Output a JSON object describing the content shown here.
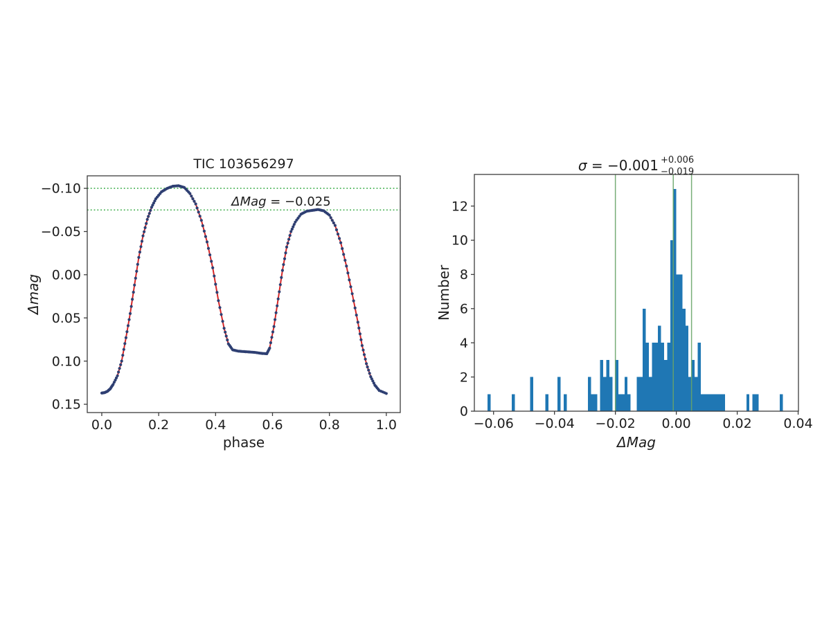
{
  "page": {
    "background": "#ffffff"
  },
  "chart_data": [
    {
      "type": "line",
      "title": "TIC 103656297",
      "xlabel": "phase",
      "ylabel": "Δmag",
      "annotation": {
        "label_italic": "ΔMag",
        "label_rest": " = −0.025",
        "x": 0.615,
        "y": -0.085
      },
      "x_ticks": [
        "0.0",
        "0.2",
        "0.4",
        "0.6",
        "0.8",
        "1.0"
      ],
      "x_tick_values": [
        0,
        0.2,
        0.4,
        0.6,
        0.8,
        1.0
      ],
      "y_ticks": [
        "−0.10",
        "−0.05",
        "0.00",
        "0.05",
        "0.10",
        "0.15"
      ],
      "y_tick_values": [
        -0.1,
        -0.05,
        0.0,
        0.05,
        0.1,
        0.15
      ],
      "xlim": [
        -0.051,
        1.049
      ],
      "ylim": [
        0.1596,
        -0.1145
      ],
      "y_axis_inverted": true,
      "grid": false,
      "hlines": [
        -0.1,
        -0.075
      ],
      "hline_color": "#3fae4c",
      "scatter_color": "#2e3f72",
      "line_color": "#d62728",
      "points": [
        [
          0.0,
          0.137
        ],
        [
          0.01,
          0.1365
        ],
        [
          0.02,
          0.135
        ],
        [
          0.03,
          0.132
        ],
        [
          0.04,
          0.127
        ],
        [
          0.055,
          0.117
        ],
        [
          0.07,
          0.1
        ],
        [
          0.085,
          0.073
        ],
        [
          0.1,
          0.045
        ],
        [
          0.115,
          0.012
        ],
        [
          0.13,
          -0.02
        ],
        [
          0.145,
          -0.045
        ],
        [
          0.16,
          -0.064
        ],
        [
          0.175,
          -0.078
        ],
        [
          0.19,
          -0.088
        ],
        [
          0.21,
          -0.096
        ],
        [
          0.23,
          -0.1
        ],
        [
          0.25,
          -0.1025
        ],
        [
          0.27,
          -0.103
        ],
        [
          0.29,
          -0.101
        ],
        [
          0.31,
          -0.094
        ],
        [
          0.33,
          -0.082
        ],
        [
          0.35,
          -0.063
        ],
        [
          0.37,
          -0.038
        ],
        [
          0.39,
          -0.008
        ],
        [
          0.41,
          0.03
        ],
        [
          0.43,
          0.062
        ],
        [
          0.445,
          0.08
        ],
        [
          0.46,
          0.087
        ],
        [
          0.48,
          0.0885
        ],
        [
          0.5,
          0.089
        ],
        [
          0.52,
          0.0895
        ],
        [
          0.54,
          0.09
        ],
        [
          0.56,
          0.091
        ],
        [
          0.58,
          0.0915
        ],
        [
          0.59,
          0.085
        ],
        [
          0.605,
          0.06
        ],
        [
          0.62,
          0.028
        ],
        [
          0.635,
          -0.005
        ],
        [
          0.65,
          -0.032
        ],
        [
          0.665,
          -0.05
        ],
        [
          0.68,
          -0.061
        ],
        [
          0.7,
          -0.07
        ],
        [
          0.72,
          -0.0735
        ],
        [
          0.74,
          -0.0745
        ],
        [
          0.76,
          -0.0755
        ],
        [
          0.78,
          -0.074
        ],
        [
          0.8,
          -0.069
        ],
        [
          0.82,
          -0.057
        ],
        [
          0.84,
          -0.037
        ],
        [
          0.86,
          -0.01
        ],
        [
          0.88,
          0.022
        ],
        [
          0.9,
          0.055
        ],
        [
          0.915,
          0.082
        ],
        [
          0.93,
          0.103
        ],
        [
          0.945,
          0.118
        ],
        [
          0.96,
          0.128
        ],
        [
          0.975,
          0.134
        ],
        [
          1.0,
          0.1375
        ]
      ]
    },
    {
      "type": "bar",
      "title_sigma": "σ = −0.001",
      "title_sup": "+0.006",
      "title_sub": "−0.019",
      "xlabel": "ΔMag",
      "ylabel": "Number",
      "x_ticks": [
        "−0.06",
        "−0.04",
        "−0.02",
        "0.00",
        "0.02",
        "0.04"
      ],
      "x_tick_values": [
        -0.06,
        -0.04,
        -0.02,
        0,
        0.02,
        0.04
      ],
      "y_ticks": [
        "0",
        "2",
        "4",
        "6",
        "8",
        "10",
        "12"
      ],
      "y_tick_values": [
        0,
        2,
        4,
        6,
        8,
        10,
        12
      ],
      "xlim": [
        -0.0663,
        0.0401
      ],
      "ylim": [
        0,
        13.85
      ],
      "grid": false,
      "bin_width": 0.001,
      "bin_left_edges": [
        -0.062,
        -0.054,
        -0.048,
        -0.043,
        -0.039,
        -0.037,
        -0.029,
        -0.028,
        -0.027,
        -0.025,
        -0.024,
        -0.023,
        -0.022,
        -0.02,
        -0.019,
        -0.018,
        -0.017,
        -0.016,
        -0.013,
        -0.012,
        -0.011,
        -0.01,
        -0.009,
        -0.008,
        -0.007,
        -0.006,
        -0.005,
        -0.004,
        -0.003,
        -0.002,
        -0.001,
        0.0,
        0.001,
        0.002,
        0.003,
        0.004,
        0.005,
        0.006,
        0.007,
        0.008,
        0.009,
        0.01,
        0.011,
        0.012,
        0.013,
        0.014,
        0.015,
        0.023,
        0.025,
        0.026,
        0.034
      ],
      "counts": [
        1,
        1,
        2,
        1,
        2,
        1,
        2,
        1,
        1,
        3,
        2,
        3,
        2,
        3,
        1,
        1,
        2,
        1,
        2,
        2,
        6,
        4,
        2,
        4,
        4,
        5,
        4,
        3,
        4,
        10,
        13,
        8,
        8,
        6,
        5,
        2,
        3,
        2,
        4,
        1,
        1,
        1,
        1,
        1,
        1,
        1,
        1,
        1,
        1,
        1,
        1
      ],
      "vlines": [
        -0.02,
        -0.001,
        0.005
      ],
      "vline_color": "#69a569",
      "bar_color": "#1f77b4"
    }
  ]
}
